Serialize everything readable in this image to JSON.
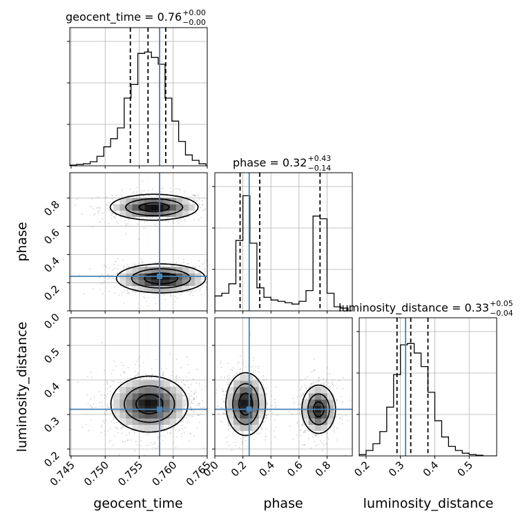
{
  "chart_data": {
    "type": "corner",
    "parameters": [
      "geocent_time",
      "phase",
      "luminosity_distance"
    ],
    "truth_color": "#4682b4",
    "line_color": "#000000",
    "titles": {
      "geocent_time": {
        "prefix": "geocent_time = 0.76",
        "sup": "+0.00",
        "sub": "−0.00"
      },
      "phase": {
        "prefix": "phase = 0.32",
        "sup": "+0.43",
        "sub": "−0.14"
      },
      "luminosity_distance": {
        "prefix": "luminosity_distance = 0.33",
        "sup": "+0.05",
        "sub": "−0.04"
      }
    },
    "axis_labels": {
      "geocent_time": "geocent_time",
      "phase": "phase",
      "luminosity_distance": "luminosity_distance"
    },
    "ticks": {
      "geocent_time": {
        "values": [
          0.745,
          0.75,
          0.755,
          0.76,
          0.765
        ],
        "labels": [
          "0.745",
          "0.750",
          "0.755",
          "0.760",
          "0.765"
        ]
      },
      "phase": {
        "values": [
          0.0,
          0.2,
          0.4,
          0.6,
          0.8
        ],
        "labels": [
          "0.0",
          "0.2",
          "0.4",
          "0.6",
          "0.8"
        ]
      },
      "luminosity_distance": {
        "values": [
          0.2,
          0.3,
          0.4,
          0.5
        ],
        "labels": [
          "0.2",
          "0.3",
          "0.4",
          "0.5"
        ]
      }
    },
    "ranges": {
      "geocent_time": [
        0.7448,
        0.765
      ],
      "phase": [
        0.0,
        0.98
      ],
      "luminosity_distance": [
        0.18,
        0.58
      ]
    },
    "truths": {
      "geocent_time": 0.758,
      "phase": 0.245,
      "luminosity_distance": 0.315
    },
    "quantiles": {
      "geocent_time": [
        0.7537,
        0.7563,
        0.7589
      ],
      "phase": [
        0.18,
        0.32,
        0.75
      ],
      "luminosity_distance": [
        0.29,
        0.33,
        0.38
      ]
    },
    "histograms": {
      "geocent_time": {
        "edges": [
          0.7448,
          0.7458,
          0.7468,
          0.7478,
          0.7488,
          0.7498,
          0.7508,
          0.7518,
          0.7528,
          0.7538,
          0.7548,
          0.7558,
          0.7568,
          0.7578,
          0.7588,
          0.7598,
          0.7608,
          0.7618,
          0.7628,
          0.7638,
          0.7648,
          0.765
        ],
        "counts": [
          0.005,
          0.01,
          0.015,
          0.03,
          0.07,
          0.14,
          0.2,
          0.28,
          0.5,
          0.6,
          0.83,
          0.84,
          0.8,
          0.75,
          0.5,
          0.33,
          0.18,
          0.08,
          0.04,
          0.015,
          0.0
        ]
      },
      "phase": {
        "edges": [
          0.0,
          0.05,
          0.1,
          0.15,
          0.2,
          0.25,
          0.3,
          0.35,
          0.4,
          0.45,
          0.5,
          0.55,
          0.6,
          0.65,
          0.7,
          0.75,
          0.8,
          0.85,
          0.9,
          0.95,
          0.98
        ],
        "counts": [
          0.11,
          0.13,
          0.2,
          0.52,
          0.85,
          0.5,
          0.17,
          0.1,
          0.08,
          0.07,
          0.06,
          0.05,
          0.07,
          0.15,
          0.7,
          0.68,
          0.13,
          0.03,
          0.02,
          0.0
        ]
      },
      "luminosity_distance": {
        "edges": [
          0.18,
          0.2,
          0.22,
          0.24,
          0.26,
          0.28,
          0.3,
          0.32,
          0.34,
          0.36,
          0.38,
          0.4,
          0.42,
          0.44,
          0.46,
          0.48,
          0.5,
          0.52,
          0.54,
          0.56,
          0.58
        ],
        "counts": [
          0.01,
          0.04,
          0.09,
          0.18,
          0.36,
          0.6,
          0.82,
          0.83,
          0.76,
          0.66,
          0.47,
          0.26,
          0.14,
          0.07,
          0.04,
          0.02,
          0.01,
          0.005,
          0.0,
          0.0
        ]
      }
    },
    "blobs": {
      "phase_vs_geocent_time": [
        {
          "cx": 0.7572,
          "cy": 0.735,
          "sx": 0.0032,
          "sy": 0.045,
          "w": 1.0
        },
        {
          "cx": 0.7582,
          "cy": 0.23,
          "sx": 0.0032,
          "sy": 0.05,
          "w": 1.05
        }
      ],
      "luminosity_distance_vs_geocent_time": [
        {
          "cx": 0.7565,
          "cy": 0.33,
          "sx": 0.0028,
          "sy": 0.04,
          "w": 1.0
        }
      ],
      "luminosity_distance_vs_phase": [
        {
          "cx": 0.22,
          "cy": 0.33,
          "sx": 0.07,
          "sy": 0.045,
          "w": 1.0
        },
        {
          "cx": 0.74,
          "cy": 0.315,
          "sx": 0.06,
          "sy": 0.035,
          "w": 0.95
        }
      ]
    }
  }
}
